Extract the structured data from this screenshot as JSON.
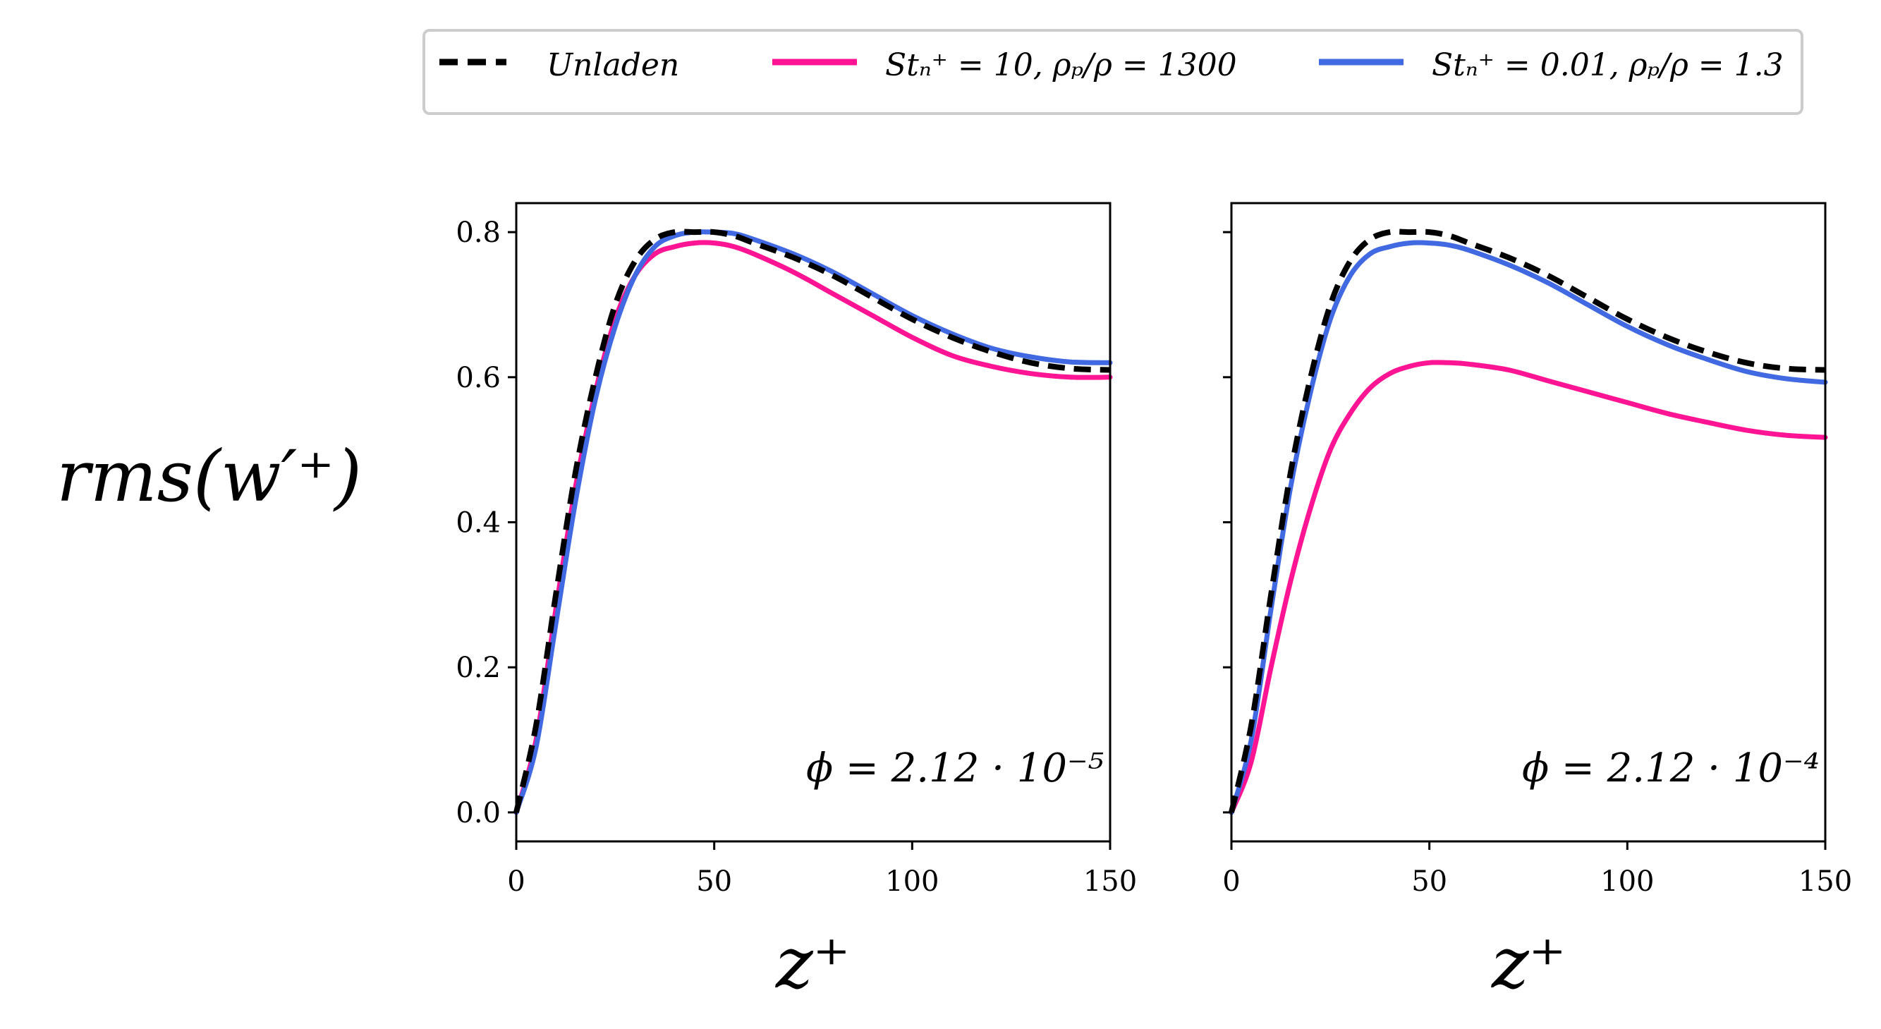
{
  "chart_data": {
    "type": "line",
    "legend": {
      "placement": "top",
      "entries": [
        {
          "label": "Unladen",
          "color": "#000000",
          "style": "dashed"
        },
        {
          "label": "Stₙ⁺ = 10, ρₚ/ρ = 1300",
          "color": "#ff1493",
          "style": "solid"
        },
        {
          "label": "Stₙ⁺ = 0.01, ρₚ/ρ = 1.3",
          "color": "#4169e1",
          "style": "solid"
        }
      ]
    },
    "ylabel": "rms(w′⁺)",
    "xlabel": "z⁺",
    "xlim": [
      0,
      150
    ],
    "ylim": [
      -0.04,
      0.84
    ],
    "xticks": [
      0,
      50,
      100,
      150
    ],
    "yticks": [
      0.0,
      0.2,
      0.4,
      0.6,
      0.8
    ],
    "ytick_labels": [
      "0.0",
      "0.2",
      "0.4",
      "0.6",
      "0.8"
    ],
    "panels": [
      {
        "annotation": "ϕ = 2.12 · 10⁻⁵",
        "series": [
          {
            "name": "Unladen",
            "color": "#000000",
            "dashed": true,
            "x": [
              0,
              5,
              10,
              15,
              20,
              25,
              30,
              35,
              40,
              45,
              50,
              55,
              60,
              70,
              80,
              90,
              100,
              110,
              120,
              130,
              140,
              150
            ],
            "y": [
              0.0,
              0.12,
              0.3,
              0.47,
              0.6,
              0.7,
              0.76,
              0.79,
              0.8,
              0.8,
              0.8,
              0.795,
              0.785,
              0.765,
              0.74,
              0.71,
              0.68,
              0.655,
              0.635,
              0.62,
              0.612,
              0.61
            ]
          },
          {
            "name": "St+=10, rho_p/rho=1300",
            "color": "#ff1493",
            "dashed": false,
            "x": [
              0,
              5,
              10,
              15,
              20,
              25,
              30,
              35,
              40,
              45,
              50,
              55,
              60,
              70,
              80,
              90,
              100,
              110,
              120,
              130,
              140,
              150
            ],
            "y": [
              0.0,
              0.1,
              0.28,
              0.45,
              0.58,
              0.68,
              0.74,
              0.77,
              0.78,
              0.785,
              0.785,
              0.78,
              0.77,
              0.745,
              0.715,
              0.685,
              0.655,
              0.63,
              0.615,
              0.605,
              0.6,
              0.6
            ]
          },
          {
            "name": "St+=0.01, rho_p/rho=1.3",
            "color": "#4169e1",
            "dashed": false,
            "x": [
              0,
              5,
              10,
              15,
              20,
              25,
              30,
              35,
              40,
              45,
              50,
              55,
              60,
              70,
              80,
              90,
              100,
              110,
              120,
              130,
              140,
              150
            ],
            "y": [
              0.0,
              0.09,
              0.26,
              0.43,
              0.57,
              0.67,
              0.74,
              0.78,
              0.795,
              0.8,
              0.8,
              0.798,
              0.79,
              0.77,
              0.745,
              0.715,
              0.685,
              0.66,
              0.64,
              0.628,
              0.621,
              0.62
            ]
          }
        ]
      },
      {
        "annotation": "ϕ = 2.12 · 10⁻⁴",
        "series": [
          {
            "name": "Unladen",
            "color": "#000000",
            "dashed": true,
            "x": [
              0,
              5,
              10,
              15,
              20,
              25,
              30,
              35,
              40,
              45,
              50,
              55,
              60,
              70,
              80,
              90,
              100,
              110,
              120,
              130,
              140,
              150
            ],
            "y": [
              0.0,
              0.12,
              0.3,
              0.47,
              0.6,
              0.7,
              0.76,
              0.79,
              0.8,
              0.8,
              0.8,
              0.795,
              0.785,
              0.765,
              0.74,
              0.71,
              0.68,
              0.655,
              0.635,
              0.62,
              0.612,
              0.61
            ]
          },
          {
            "name": "St+=10, rho_p/rho=1300",
            "color": "#ff1493",
            "dashed": false,
            "x": [
              0,
              5,
              10,
              15,
              20,
              25,
              30,
              35,
              40,
              45,
              50,
              55,
              60,
              70,
              80,
              90,
              100,
              110,
              120,
              130,
              140,
              150
            ],
            "y": [
              0.0,
              0.07,
              0.2,
              0.32,
              0.42,
              0.5,
              0.55,
              0.585,
              0.605,
              0.615,
              0.62,
              0.62,
              0.618,
              0.61,
              0.595,
              0.58,
              0.565,
              0.55,
              0.538,
              0.527,
              0.52,
              0.517
            ]
          },
          {
            "name": "St+=0.01, rho_p/rho=1.3",
            "color": "#4169e1",
            "dashed": false,
            "x": [
              0,
              5,
              10,
              15,
              20,
              25,
              30,
              35,
              40,
              45,
              50,
              55,
              60,
              70,
              80,
              90,
              100,
              110,
              120,
              130,
              140,
              150
            ],
            "y": [
              0.0,
              0.1,
              0.28,
              0.45,
              0.58,
              0.68,
              0.74,
              0.77,
              0.78,
              0.785,
              0.785,
              0.782,
              0.775,
              0.755,
              0.73,
              0.7,
              0.67,
              0.645,
              0.625,
              0.608,
              0.598,
              0.593
            ]
          }
        ]
      }
    ]
  }
}
